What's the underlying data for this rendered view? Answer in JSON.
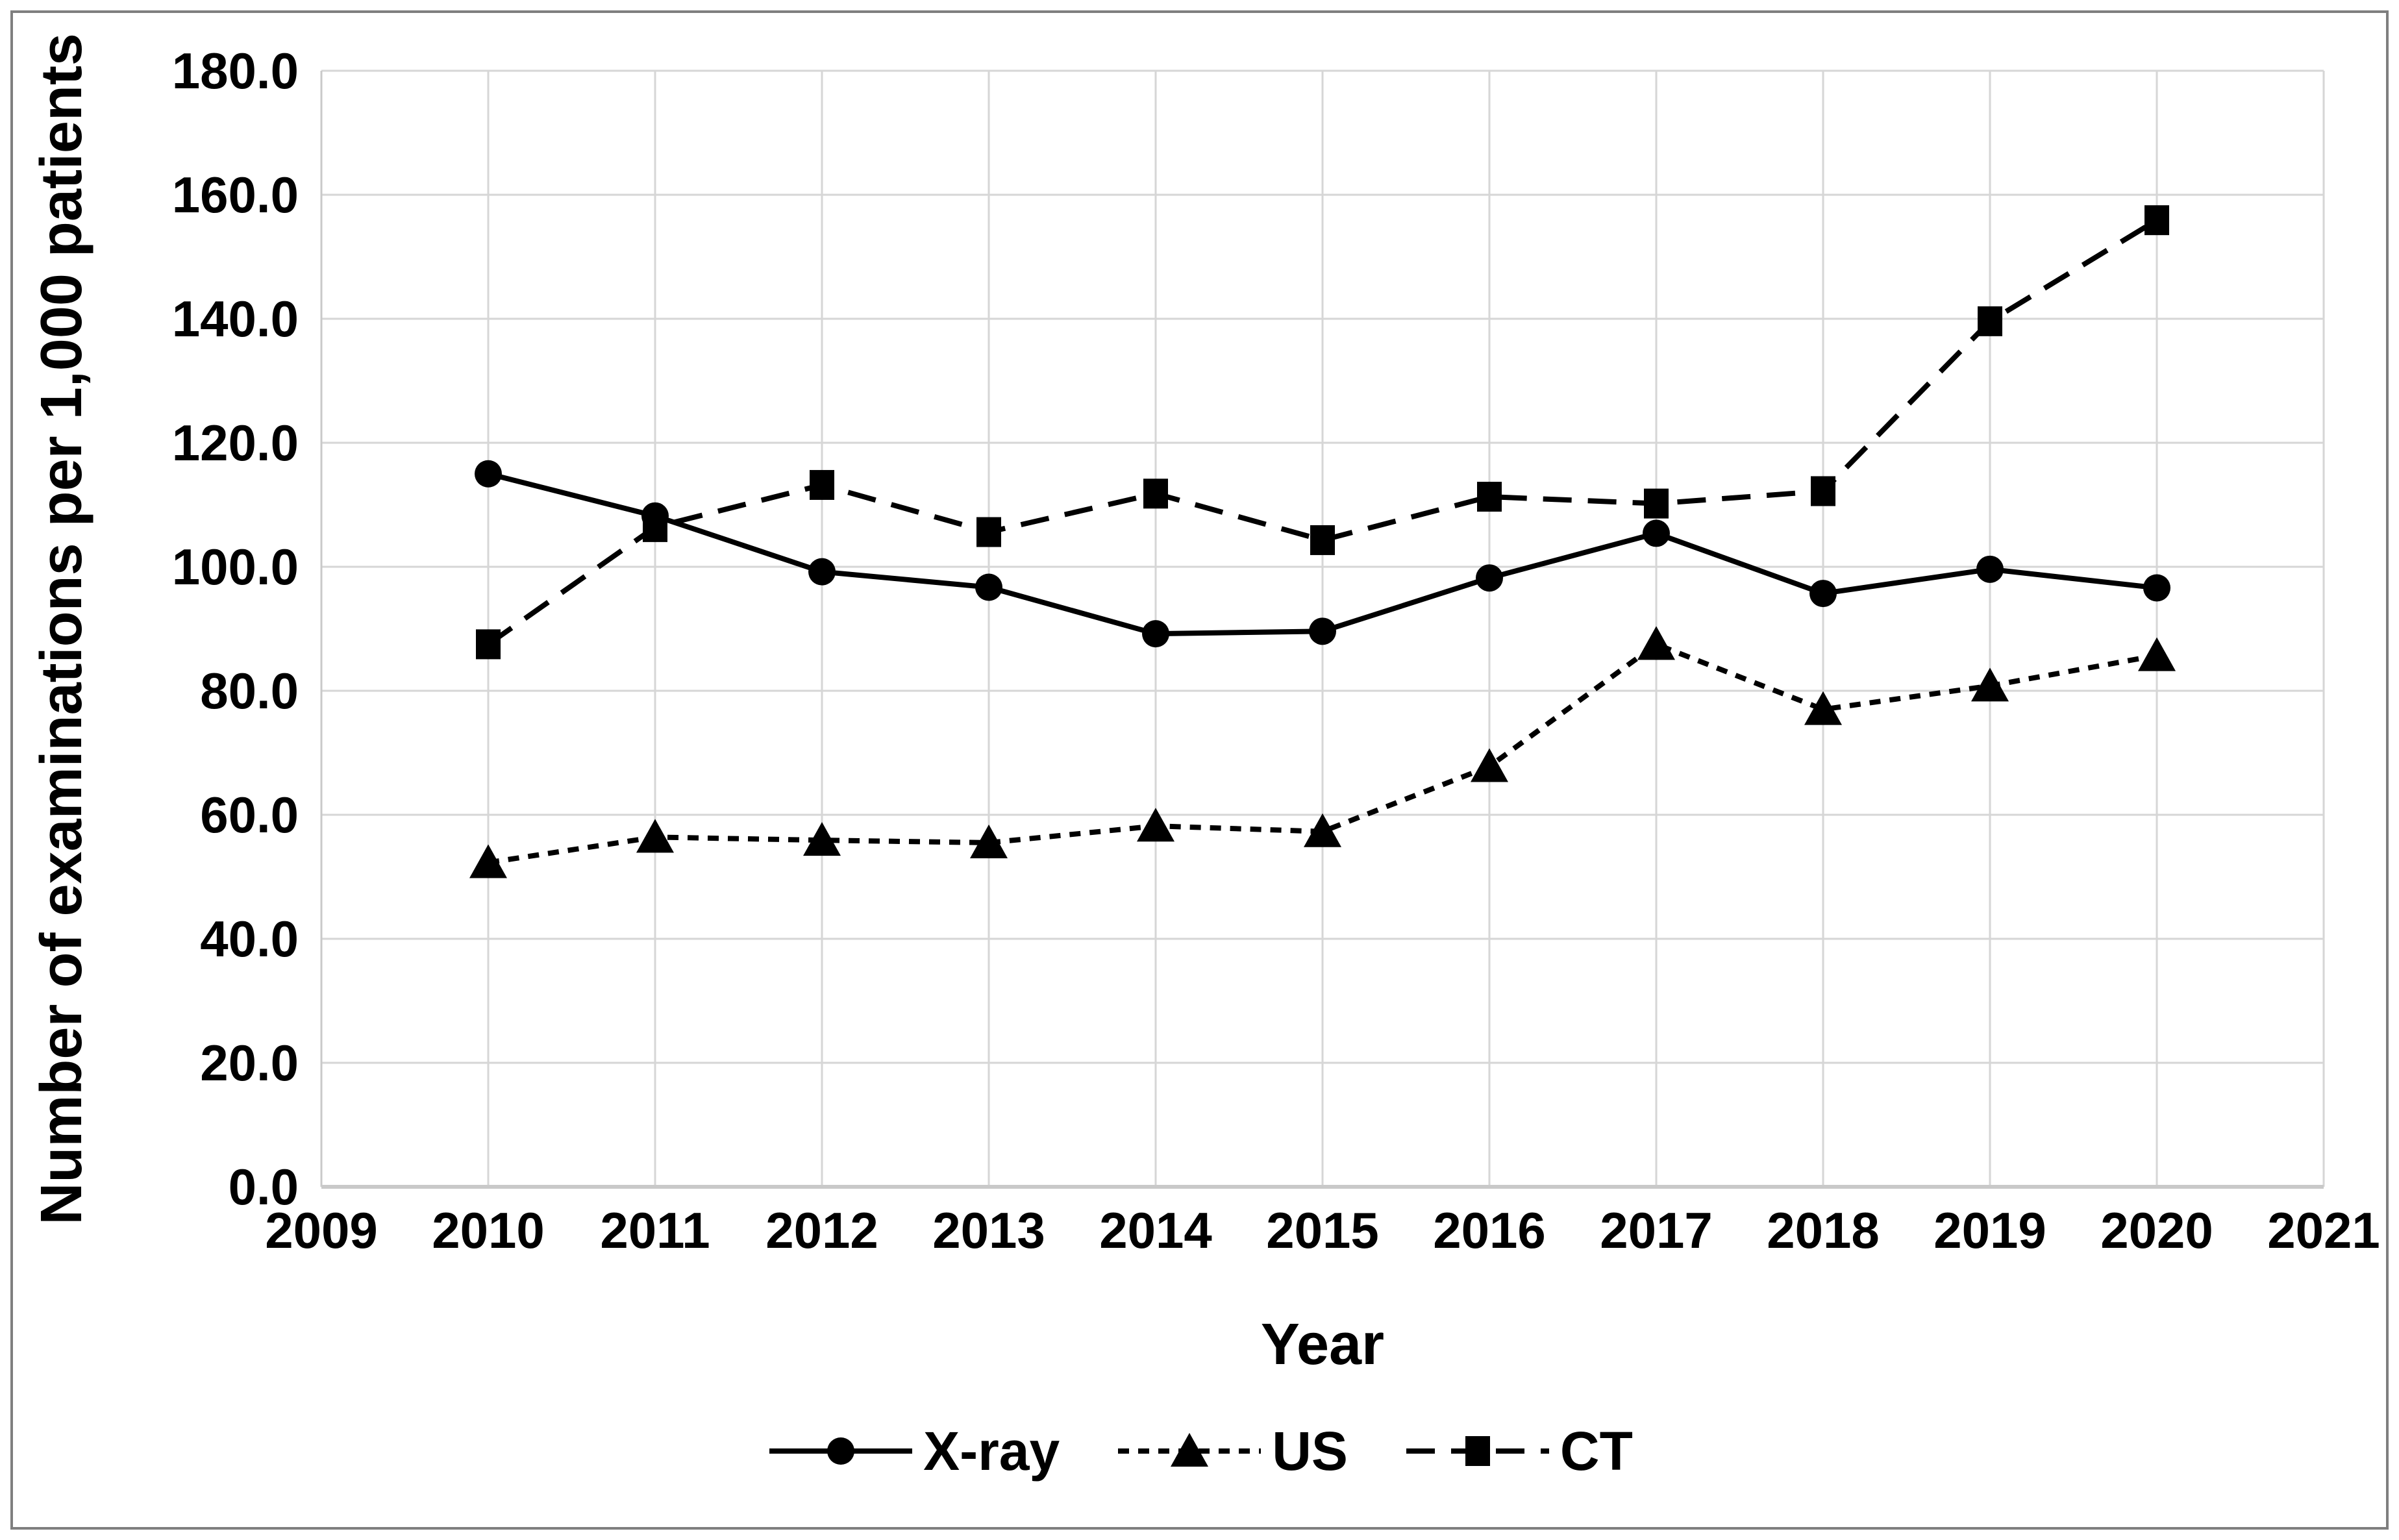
{
  "figure": {
    "background": "#ffffff",
    "border_color": "#7f7f7f",
    "grid_color": "#d6d6d6",
    "axis_color": "#c9c9c9",
    "series_color": "#000000"
  },
  "chart_data": {
    "type": "line",
    "title": "",
    "xlabel": "Year",
    "ylabel": "Number of examinations per 1,000 patients",
    "x_categories": [
      "2009",
      "2010",
      "2011",
      "2012",
      "2013",
      "2014",
      "2015",
      "2016",
      "2017",
      "2018",
      "2019",
      "2020",
      "2021"
    ],
    "x_axis_range": [
      2009,
      2021
    ],
    "ylim": [
      0,
      180
    ],
    "y_tick_step": 20,
    "y_tick_labels": [
      "0.0",
      "20.0",
      "40.0",
      "60.0",
      "80.0",
      "100.0",
      "120.0",
      "140.0",
      "160.0",
      "180.0"
    ],
    "grid": "both",
    "legend_position": "bottom",
    "x": [
      2010,
      2011,
      2012,
      2013,
      2014,
      2015,
      2016,
      2017,
      2018,
      2019,
      2020
    ],
    "series": [
      {
        "name": "X-ray",
        "marker": "circle",
        "line_style": "solid",
        "color": "#000000",
        "values": [
          115.0,
          108.2,
          99.2,
          96.7,
          89.2,
          89.6,
          98.2,
          105.4,
          95.7,
          99.6,
          96.6
        ]
      },
      {
        "name": "US",
        "marker": "triangle",
        "line_style": "short-dash",
        "color": "#000000",
        "values": [
          52.3,
          56.4,
          55.9,
          55.5,
          58.2,
          57.3,
          67.8,
          87.5,
          77.0,
          80.8,
          85.7
        ]
      },
      {
        "name": "CT",
        "marker": "square",
        "line_style": "long-dash",
        "color": "#000000",
        "values": [
          87.5,
          106.4,
          113.2,
          105.6,
          111.8,
          104.3,
          111.3,
          110.2,
          112.2,
          139.6,
          155.9
        ]
      }
    ]
  }
}
